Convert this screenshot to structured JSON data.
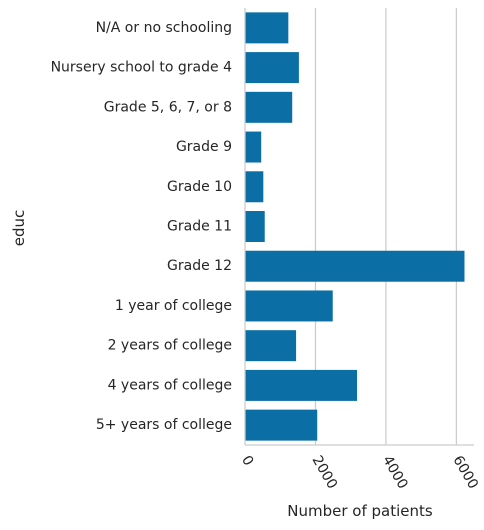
{
  "chart_data": {
    "type": "bar",
    "orientation": "horizontal",
    "categories": [
      "N/A or no schooling",
      "Nursery school to grade 4",
      "Grade 5, 6, 7, or 8",
      "Grade 9",
      "Grade 10",
      "Grade 11",
      "Grade 12",
      "1 year of college",
      "2 years of college",
      "4 years of college",
      "5+ years of college"
    ],
    "values": [
      1230,
      1530,
      1340,
      460,
      520,
      560,
      6230,
      2490,
      1450,
      3180,
      2050
    ],
    "xlabel": "Number of patients",
    "ylabel": "educ",
    "xlim": [
      0,
      6500
    ],
    "xticks": [
      0,
      2000,
      4000,
      6000
    ],
    "xtick_labels": [
      "0",
      "2000",
      "4000",
      "6000"
    ],
    "grid": "vertical",
    "bar_color": "#0b6fa6"
  }
}
